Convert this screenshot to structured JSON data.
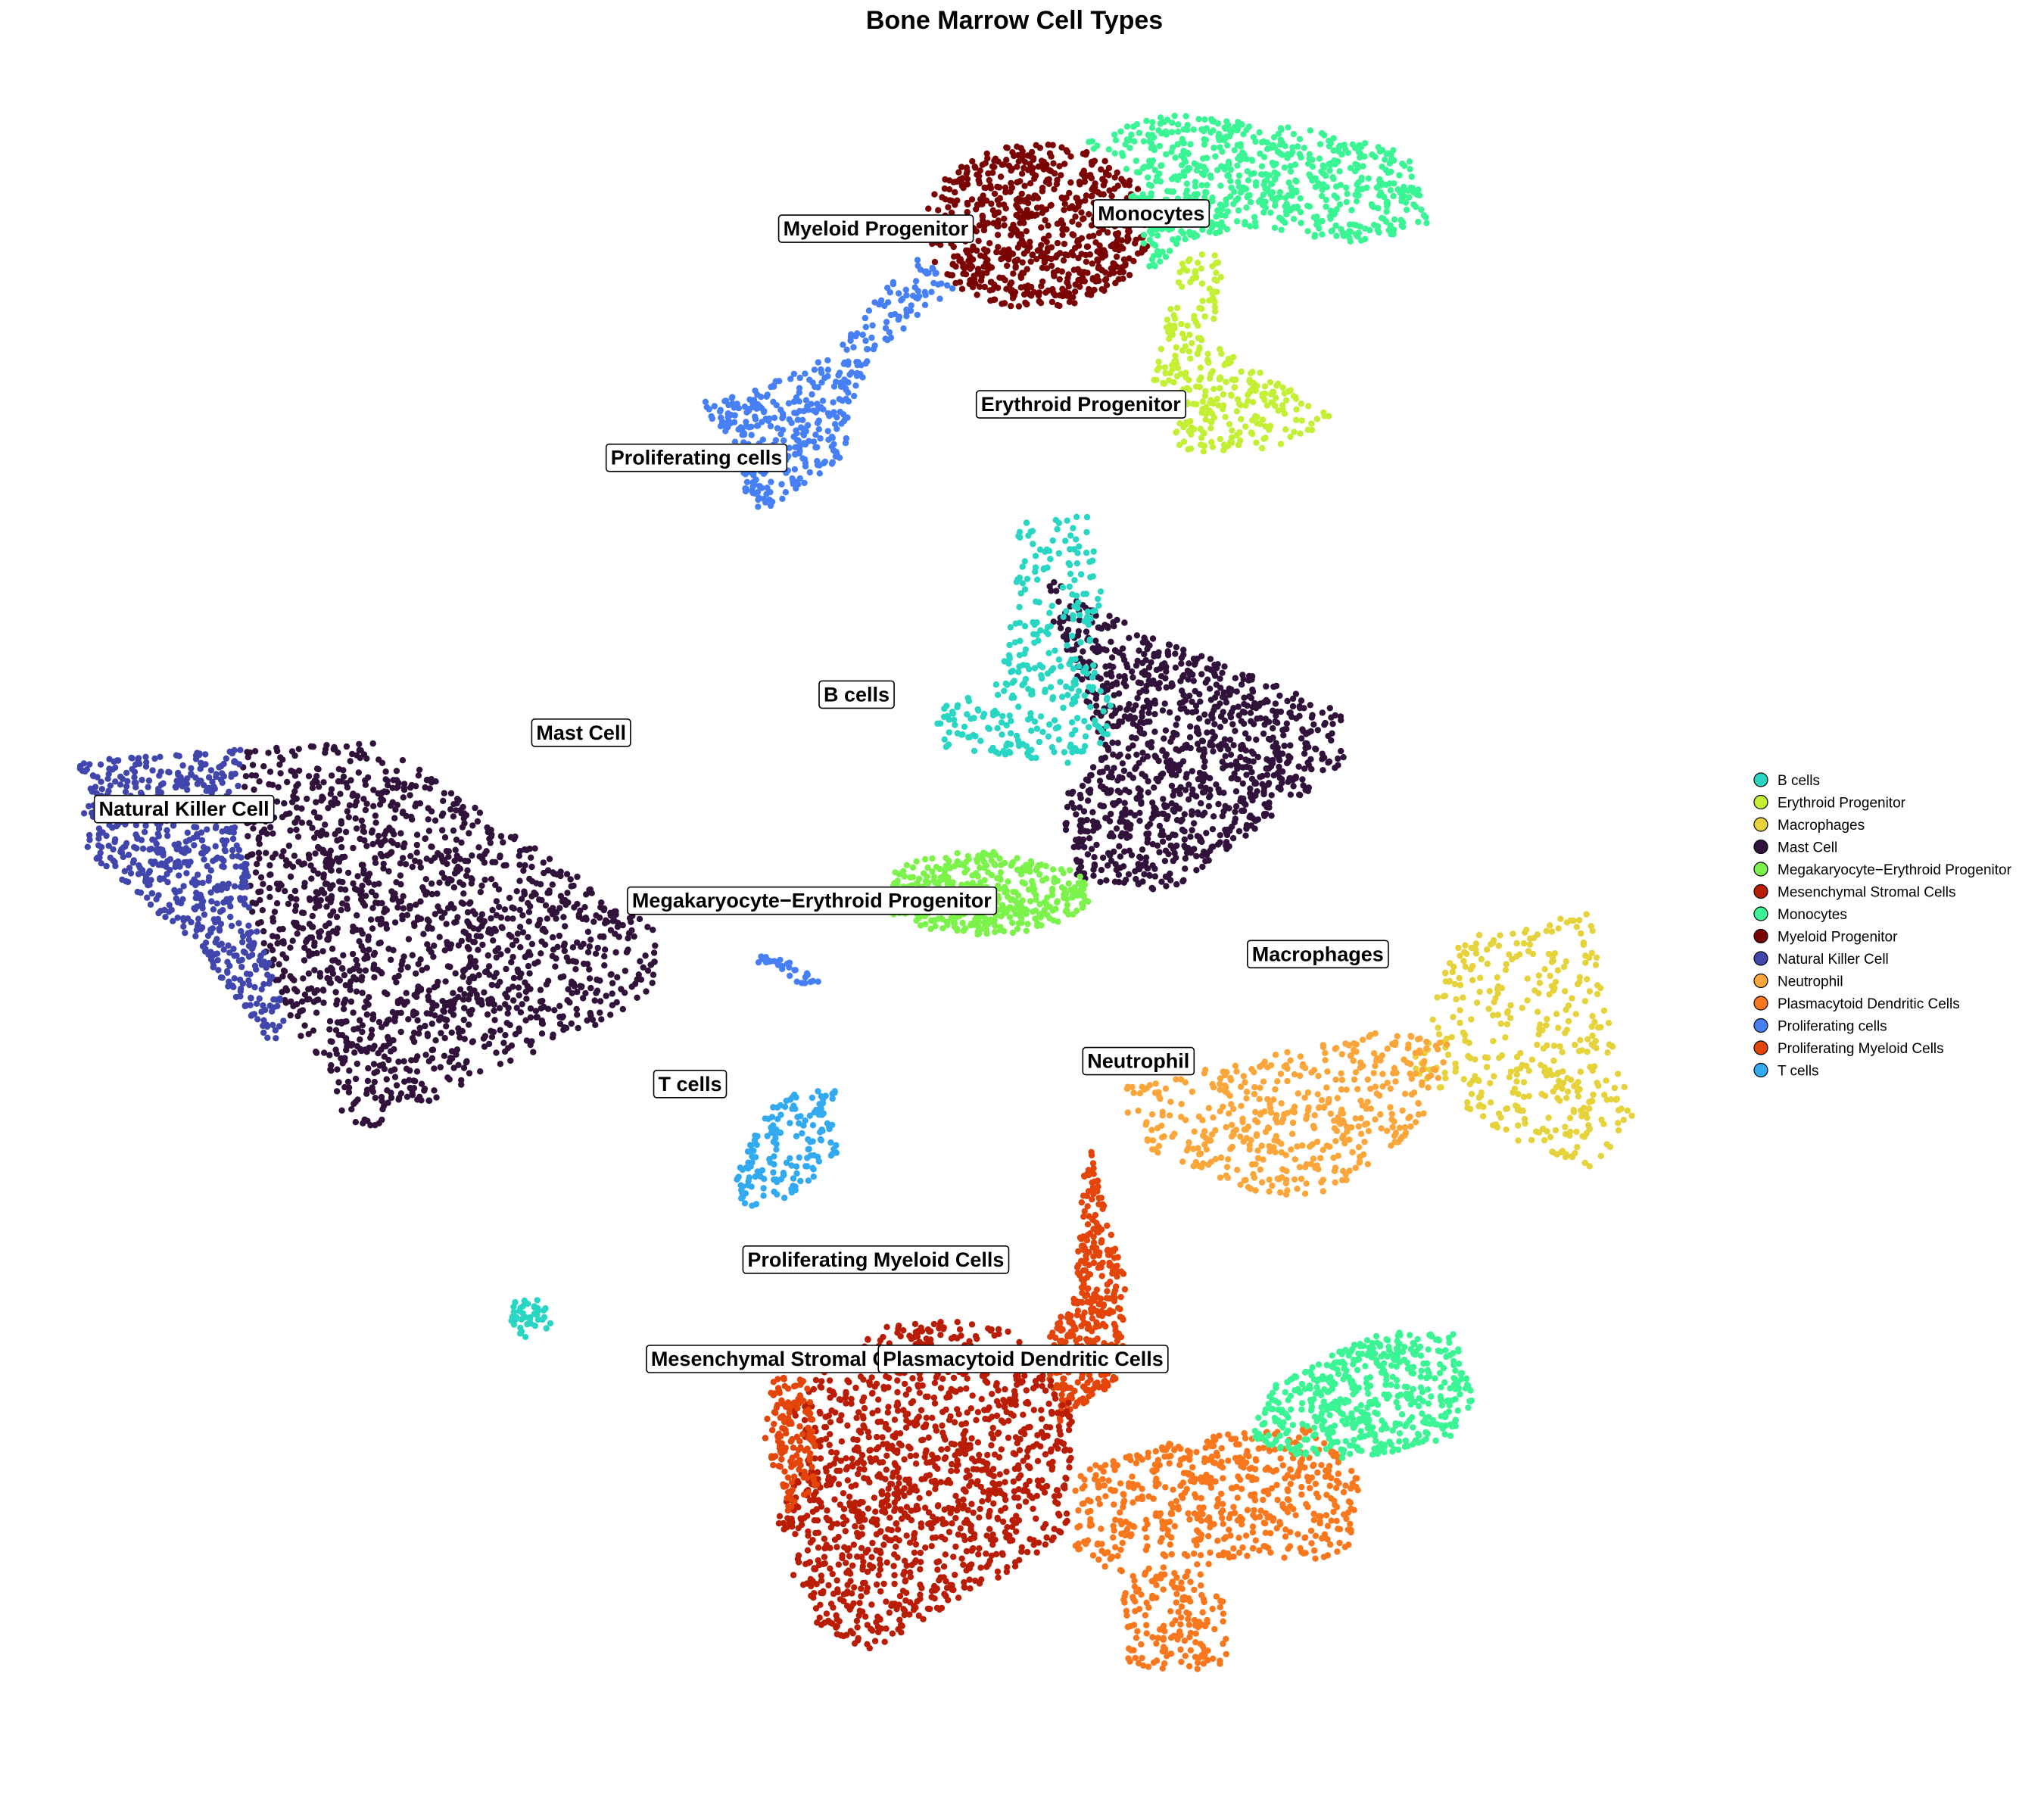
{
  "chart_data": {
    "type": "scatter",
    "title": "Bone Marrow Cell Types",
    "xlabel": "",
    "ylabel": "",
    "axes_visible": false,
    "grid": false,
    "legend_position": "right",
    "xlim": [
      -12,
      14
    ],
    "ylim": [
      -12,
      11
    ],
    "series": [
      {
        "name": "B cells",
        "color": "#28D6C3"
      },
      {
        "name": "Erythroid Progenitor",
        "color": "#C3F034"
      },
      {
        "name": "Macrophages",
        "color": "#E6D23A"
      },
      {
        "name": "Mast Cell",
        "color": "#30123B"
      },
      {
        "name": "Megakaryocyte−Erythroid Progenitor",
        "color": "#7CF34B"
      },
      {
        "name": "Mesenchymal Stromal Cells",
        "color": "#BA1D05"
      },
      {
        "name": "Monocytes",
        "color": "#3BF595"
      },
      {
        "name": "Myeloid Progenitor",
        "color": "#7A0403"
      },
      {
        "name": "Natural Killer Cell",
        "color": "#4146AD"
      },
      {
        "name": "Neutrophil",
        "color": "#FBA63A"
      },
      {
        "name": "Plasmacytoid Dendritic Cells",
        "color": "#F9781E"
      },
      {
        "name": "Proliferating cells",
        "color": "#4680F4"
      },
      {
        "name": "Proliferating Myeloid Cells",
        "color": "#E4450B"
      },
      {
        "name": "T cells",
        "color": "#33AAF0"
      }
    ],
    "clusters": [
      {
        "label": "B cells",
        "label_pos": [
          0.9,
          2.5
        ]
      },
      {
        "label": "Erythroid Progenitor",
        "label_pos": [
          4.4,
          6.3
        ]
      },
      {
        "label": "Macrophages",
        "label_pos": [
          8.1,
          -0.9
        ]
      },
      {
        "label": "Mast Cell",
        "label_pos": [
          -3.4,
          2.0
        ]
      },
      {
        "label": "Megakaryocyte−Erythroid Progenitor",
        "label_pos": [
          0.2,
          -0.2
        ]
      },
      {
        "label": "Mesenchymal Stromal Cells",
        "label_pos": [
          -0.2,
          -6.2
        ]
      },
      {
        "label": "Monocytes",
        "label_pos": [
          5.5,
          8.8
        ]
      },
      {
        "label": "Myeloid Progenitor",
        "label_pos": [
          1.2,
          8.6
        ]
      },
      {
        "label": "Natural Killer Cell",
        "label_pos": [
          -9.6,
          1.0
        ]
      },
      {
        "label": "Neutrophil",
        "label_pos": [
          5.3,
          -2.3
        ]
      },
      {
        "label": "Plasmacytoid Dendritic Cells",
        "label_pos": [
          3.5,
          -6.2
        ]
      },
      {
        "label": "Proliferating cells",
        "label_pos": [
          -1.6,
          5.6
        ]
      },
      {
        "label": "Proliferating Myeloid Cells",
        "label_pos": [
          1.2,
          -4.9
        ]
      },
      {
        "label": "T cells",
        "label_pos": [
          -1.7,
          -2.6
        ]
      }
    ]
  }
}
